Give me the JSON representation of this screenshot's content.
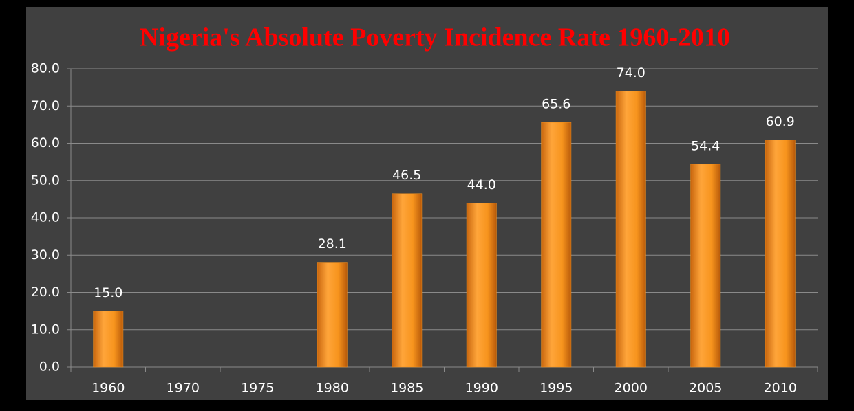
{
  "chart_data": {
    "type": "bar",
    "title": "Nigeria's Absolute Poverty Incidence Rate 1960-2010",
    "categories": [
      "1960",
      "1970",
      "1975",
      "1980",
      "1985",
      "1990",
      "1995",
      "2000",
      "2005",
      "2010"
    ],
    "values": [
      15.0,
      null,
      null,
      28.1,
      46.5,
      44.0,
      65.6,
      74.0,
      54.4,
      60.9
    ],
    "value_labels": [
      "15.0",
      null,
      null,
      "28.1",
      "46.5",
      "44.0",
      "65.6",
      "74.0",
      "54.4",
      "60.9"
    ],
    "color": "#f7941d",
    "ylim": [
      0,
      80
    ],
    "yticks": [
      {
        "value": 0,
        "label": "0.0"
      },
      {
        "value": 10,
        "label": "10.0"
      },
      {
        "value": 20,
        "label": "20.0"
      },
      {
        "value": 30,
        "label": "30.0"
      },
      {
        "value": 40,
        "label": "40.0"
      },
      {
        "value": 50,
        "label": "50.0"
      },
      {
        "value": 60,
        "label": "60.0"
      },
      {
        "value": 70,
        "label": "70.0"
      },
      {
        "value": 80,
        "label": "80.0"
      }
    ],
    "grid": true
  }
}
